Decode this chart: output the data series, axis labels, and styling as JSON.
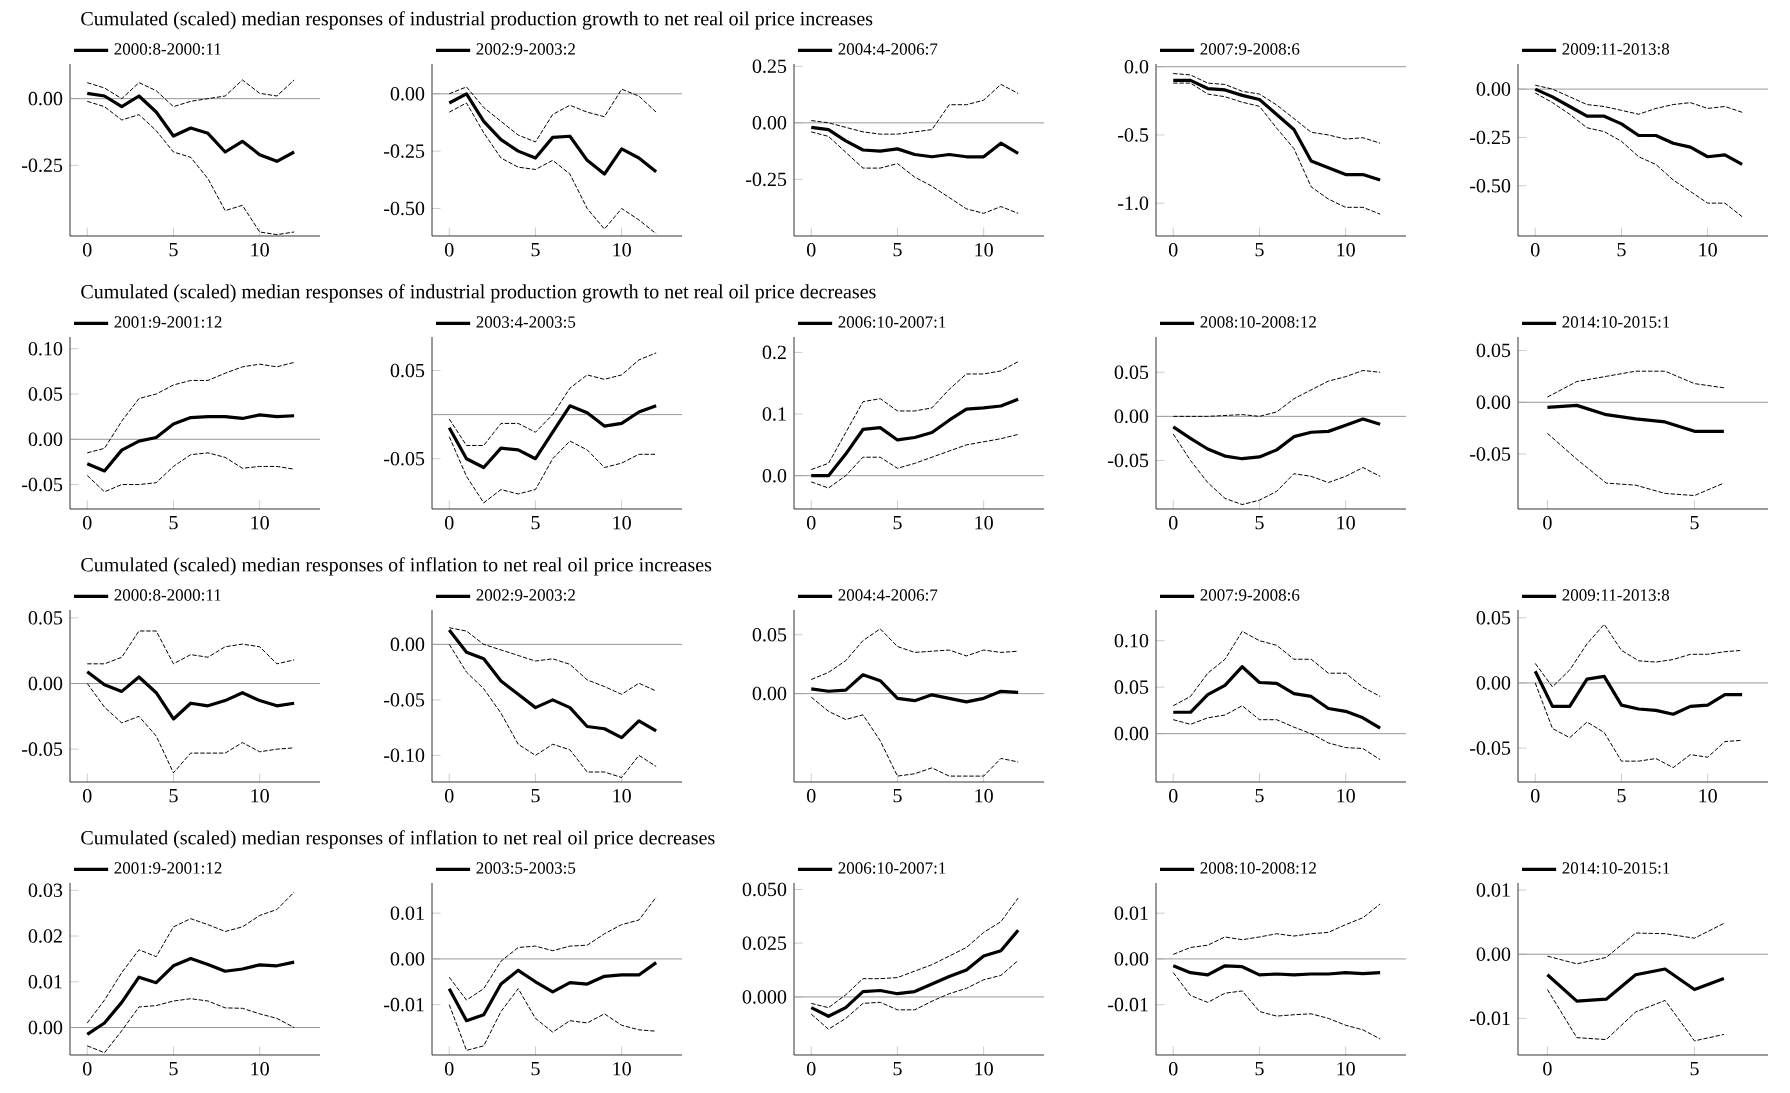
{
  "chart_data": [
    {
      "type": "line",
      "title": "Cumulated (scaled) median responses of industrial production growth to net real oil price increases",
      "x": [
        0,
        1,
        2,
        3,
        4,
        5,
        6,
        7,
        8,
        9,
        10,
        11,
        12
      ],
      "xlim": [
        -1,
        13.5
      ],
      "xticks": [
        0,
        5,
        10
      ],
      "ylim": [
        -0.515,
        0.13
      ],
      "yticks": [
        {
          "value": 0,
          "label": "0.00"
        },
        {
          "value": -0.25,
          "label": "-0.25"
        }
      ],
      "legend": "top left",
      "ref_lines": [
        {
          "axis": "y",
          "value": 0,
          "color": "#999999"
        }
      ],
      "series": [
        {
          "name": "2000:8-2000:11",
          "color": "#000000",
          "line_style": "solid",
          "values": [
            0.02,
            0.01,
            -0.03,
            0.01,
            -0.05,
            -0.14,
            -0.11,
            -0.13,
            -0.2,
            -0.16,
            -0.21,
            -0.235,
            -0.2
          ]
        },
        {
          "color": "#000000",
          "line_style": "dashed",
          "values": [
            0.06,
            0.04,
            0.0,
            0.06,
            0.03,
            -0.03,
            -0.01,
            0.0,
            0.01,
            0.07,
            0.02,
            0.01,
            0.07
          ]
        },
        {
          "color": "#000000",
          "line_style": "dashed",
          "values": [
            -0.01,
            -0.03,
            -0.08,
            -0.06,
            -0.12,
            -0.2,
            -0.22,
            -0.3,
            -0.42,
            -0.4,
            -0.5,
            -0.51,
            -0.5
          ]
        }
      ]
    },
    {
      "type": "line",
      "x": [
        0,
        1,
        2,
        3,
        4,
        5,
        6,
        7,
        8,
        9,
        10,
        11,
        12
      ],
      "xlim": [
        -1,
        13.5
      ],
      "xticks": [
        0,
        5,
        10
      ],
      "ylim": [
        -0.62,
        0.13
      ],
      "yticks": [
        {
          "value": 0,
          "label": "0.00"
        },
        {
          "value": -0.25,
          "label": "-0.25"
        },
        {
          "value": -0.5,
          "label": "-0.50"
        }
      ],
      "legend": "top left",
      "ref_lines": [
        {
          "axis": "y",
          "value": 0,
          "color": "#999999"
        }
      ],
      "series": [
        {
          "name": "2002:9-2003:2",
          "color": "#000000",
          "line_style": "solid",
          "values": [
            -0.04,
            0.0,
            -0.12,
            -0.2,
            -0.25,
            -0.28,
            -0.19,
            -0.185,
            -0.29,
            -0.35,
            -0.24,
            -0.28,
            -0.34
          ]
        },
        {
          "color": "#000000",
          "line_style": "dashed",
          "values": [
            0.0,
            0.03,
            -0.06,
            -0.12,
            -0.18,
            -0.21,
            -0.09,
            -0.05,
            -0.08,
            -0.1,
            0.02,
            -0.01,
            -0.08
          ]
        },
        {
          "color": "#000000",
          "line_style": "dashed",
          "values": [
            -0.08,
            -0.04,
            -0.17,
            -0.28,
            -0.32,
            -0.33,
            -0.29,
            -0.35,
            -0.5,
            -0.59,
            -0.5,
            -0.55,
            -0.61
          ]
        }
      ]
    },
    {
      "type": "line",
      "x": [
        0,
        1,
        2,
        3,
        4,
        5,
        6,
        7,
        8,
        9,
        10,
        11,
        12
      ],
      "xlim": [
        -1,
        13.5
      ],
      "xticks": [
        0,
        5,
        10
      ],
      "ylim": [
        -0.5,
        0.26
      ],
      "yticks": [
        {
          "value": 0.25,
          "label": "0.25"
        },
        {
          "value": 0,
          "label": "0.00"
        },
        {
          "value": -0.25,
          "label": "-0.25"
        }
      ],
      "legend": "top left",
      "ref_lines": [
        {
          "axis": "y",
          "value": 0,
          "color": "#999999"
        }
      ],
      "series": [
        {
          "name": "2004:4-2006:7",
          "color": "#000000",
          "line_style": "solid",
          "values": [
            -0.02,
            -0.03,
            -0.08,
            -0.12,
            -0.125,
            -0.115,
            -0.14,
            -0.15,
            -0.14,
            -0.15,
            -0.15,
            -0.09,
            -0.135
          ]
        },
        {
          "color": "#000000",
          "line_style": "dashed",
          "values": [
            0.01,
            0.0,
            -0.02,
            -0.04,
            -0.05,
            -0.05,
            -0.04,
            -0.03,
            0.08,
            0.08,
            0.1,
            0.17,
            0.13
          ]
        },
        {
          "color": "#000000",
          "line_style": "dashed",
          "values": [
            -0.04,
            -0.06,
            -0.13,
            -0.2,
            -0.2,
            -0.18,
            -0.24,
            -0.28,
            -0.33,
            -0.38,
            -0.4,
            -0.37,
            -0.4
          ]
        }
      ]
    },
    {
      "type": "line",
      "x": [
        0,
        1,
        2,
        3,
        4,
        5,
        6,
        7,
        8,
        9,
        10,
        11,
        12
      ],
      "xlim": [
        -1,
        13.5
      ],
      "xticks": [
        0,
        5,
        10
      ],
      "ylim": [
        -1.24,
        0.02
      ],
      "yticks": [
        {
          "value": 0,
          "label": "0.0"
        },
        {
          "value": -0.5,
          "label": "-0.5"
        },
        {
          "value": -1,
          "label": "-1.0"
        }
      ],
      "legend": "top left",
      "ref_lines": [
        {
          "axis": "y",
          "value": 0,
          "color": "#999999"
        }
      ],
      "series": [
        {
          "name": "2007:9-2008:6",
          "color": "#000000",
          "line_style": "solid",
          "values": [
            -0.1,
            -0.1,
            -0.16,
            -0.17,
            -0.21,
            -0.24,
            -0.35,
            -0.46,
            -0.69,
            -0.74,
            -0.79,
            -0.79,
            -0.83
          ]
        },
        {
          "color": "#000000",
          "line_style": "dashed",
          "values": [
            -0.05,
            -0.06,
            -0.12,
            -0.13,
            -0.18,
            -0.2,
            -0.28,
            -0.38,
            -0.48,
            -0.5,
            -0.53,
            -0.52,
            -0.56
          ]
        },
        {
          "color": "#000000",
          "line_style": "dashed",
          "values": [
            -0.12,
            -0.12,
            -0.2,
            -0.22,
            -0.26,
            -0.29,
            -0.45,
            -0.6,
            -0.88,
            -0.97,
            -1.03,
            -1.03,
            -1.08
          ]
        }
      ]
    },
    {
      "type": "line",
      "x": [
        0,
        1,
        2,
        3,
        4,
        5,
        6,
        7,
        8,
        9,
        10,
        11,
        12
      ],
      "xlim": [
        -1,
        13.5
      ],
      "xticks": [
        0,
        5,
        10
      ],
      "ylim": [
        -0.76,
        0.13
      ],
      "yticks": [
        {
          "value": 0,
          "label": "0.00"
        },
        {
          "value": -0.25,
          "label": "-0.25"
        },
        {
          "value": -0.5,
          "label": "-0.50"
        }
      ],
      "legend": "top left",
      "ref_lines": [
        {
          "axis": "y",
          "value": 0,
          "color": "#999999"
        }
      ],
      "series": [
        {
          "name": "2009:11-2013:8",
          "color": "#000000",
          "line_style": "solid",
          "values": [
            0.0,
            -0.04,
            -0.09,
            -0.14,
            -0.14,
            -0.18,
            -0.24,
            -0.24,
            -0.28,
            -0.3,
            -0.35,
            -0.34,
            -0.39
          ]
        },
        {
          "color": "#000000",
          "line_style": "dashed",
          "values": [
            0.02,
            0.0,
            -0.04,
            -0.08,
            -0.09,
            -0.11,
            -0.13,
            -0.1,
            -0.08,
            -0.07,
            -0.1,
            -0.09,
            -0.12
          ]
        },
        {
          "color": "#000000",
          "line_style": "dashed",
          "values": [
            -0.02,
            -0.07,
            -0.13,
            -0.2,
            -0.22,
            -0.27,
            -0.35,
            -0.39,
            -0.47,
            -0.53,
            -0.59,
            -0.59,
            -0.66
          ]
        }
      ]
    },
    {
      "type": "line",
      "title": "Cumulated (scaled) median responses of industrial production growth to net real oil price decreases",
      "x": [
        0,
        1,
        2,
        3,
        4,
        5,
        6,
        7,
        8,
        9,
        10,
        11,
        12
      ],
      "xlim": [
        -1,
        13.5
      ],
      "xticks": [
        0,
        5,
        10
      ],
      "ylim": [
        -0.077,
        0.113
      ],
      "yticks": [
        {
          "value": 0.1,
          "label": "0.10"
        },
        {
          "value": 0.05,
          "label": "0.05"
        },
        {
          "value": 0,
          "label": "0.00"
        },
        {
          "value": -0.05,
          "label": "-0.05"
        }
      ],
      "legend": "top left",
      "ref_lines": [
        {
          "axis": "y",
          "value": 0,
          "color": "#999999"
        }
      ],
      "series": [
        {
          "name": "2001:9-2001:12",
          "color": "#000000",
          "line_style": "solid",
          "values": [
            -0.027,
            -0.035,
            -0.012,
            -0.002,
            0.002,
            0.017,
            0.024,
            0.025,
            0.025,
            0.023,
            0.027,
            0.025,
            0.026
          ]
        },
        {
          "color": "#000000",
          "line_style": "dashed",
          "values": [
            -0.015,
            -0.01,
            0.02,
            0.045,
            0.05,
            0.06,
            0.065,
            0.065,
            0.073,
            0.08,
            0.083,
            0.08,
            0.085
          ]
        },
        {
          "color": "#000000",
          "line_style": "dashed",
          "values": [
            -0.04,
            -0.058,
            -0.05,
            -0.05,
            -0.048,
            -0.03,
            -0.017,
            -0.015,
            -0.02,
            -0.032,
            -0.03,
            -0.03,
            -0.033
          ]
        }
      ]
    },
    {
      "type": "line",
      "x": [
        0,
        1,
        2,
        3,
        4,
        5,
        6,
        7,
        8,
        9,
        10,
        11,
        12
      ],
      "xlim": [
        -1,
        13.5
      ],
      "xticks": [
        0,
        5,
        10
      ],
      "ylim": [
        -0.107,
        0.088
      ],
      "yticks": [
        {
          "value": 0.05,
          "label": "0.05"
        },
        {
          "value": 0,
          "label": null
        },
        {
          "value": -0.05,
          "label": "-0.05"
        }
      ],
      "legend": "top left",
      "ref_lines": [
        {
          "axis": "y",
          "value": 0,
          "color": "#999999"
        }
      ],
      "series": [
        {
          "name": "2003:4-2003:5",
          "color": "#000000",
          "line_style": "solid",
          "values": [
            -0.015,
            -0.05,
            -0.06,
            -0.038,
            -0.04,
            -0.05,
            -0.02,
            0.01,
            0.002,
            -0.013,
            -0.01,
            0.003,
            0.01
          ]
        },
        {
          "color": "#000000",
          "line_style": "dashed",
          "values": [
            -0.005,
            -0.035,
            -0.035,
            -0.01,
            -0.01,
            -0.02,
            0.0,
            0.03,
            0.045,
            0.04,
            0.045,
            0.062,
            0.07
          ]
        },
        {
          "color": "#000000",
          "line_style": "dashed",
          "values": [
            -0.025,
            -0.07,
            -0.1,
            -0.085,
            -0.09,
            -0.085,
            -0.05,
            -0.03,
            -0.04,
            -0.06,
            -0.055,
            -0.045,
            -0.045
          ]
        }
      ]
    },
    {
      "type": "line",
      "x": [
        0,
        1,
        2,
        3,
        4,
        5,
        6,
        7,
        8,
        9,
        10,
        11,
        12
      ],
      "xlim": [
        -1,
        13.5
      ],
      "xticks": [
        0,
        5,
        10
      ],
      "ylim": [
        -0.054,
        0.225
      ],
      "yticks": [
        {
          "value": 0.2,
          "label": "0.2"
        },
        {
          "value": 0.1,
          "label": "0.1"
        },
        {
          "value": 0,
          "label": "0.0"
        }
      ],
      "legend": "top left",
      "ref_lines": [
        {
          "axis": "y",
          "value": 0,
          "color": "#999999"
        }
      ],
      "series": [
        {
          "name": "2006:10-2007:1",
          "color": "#000000",
          "line_style": "solid",
          "values": [
            0.0,
            0.0,
            0.035,
            0.075,
            0.078,
            0.058,
            0.062,
            0.07,
            0.09,
            0.108,
            0.11,
            0.113,
            0.124
          ]
        },
        {
          "color": "#000000",
          "line_style": "dashed",
          "values": [
            0.01,
            0.02,
            0.07,
            0.12,
            0.125,
            0.105,
            0.105,
            0.11,
            0.14,
            0.165,
            0.165,
            0.17,
            0.185
          ]
        },
        {
          "color": "#000000",
          "line_style": "dashed",
          "values": [
            -0.01,
            -0.02,
            0.0,
            0.03,
            0.03,
            0.012,
            0.02,
            0.03,
            0.04,
            0.05,
            0.055,
            0.06,
            0.067
          ]
        }
      ]
    },
    {
      "type": "line",
      "x": [
        0,
        1,
        2,
        3,
        4,
        5,
        6,
        7,
        8,
        9,
        10,
        11,
        12
      ],
      "xlim": [
        -1,
        13.5
      ],
      "xticks": [
        0,
        5,
        10
      ],
      "ylim": [
        -0.105,
        0.09
      ],
      "yticks": [
        {
          "value": 0.05,
          "label": "0.05"
        },
        {
          "value": 0,
          "label": "0.00"
        },
        {
          "value": -0.05,
          "label": "-0.05"
        }
      ],
      "legend": "top left",
      "ref_lines": [
        {
          "axis": "y",
          "value": 0,
          "color": "#999999"
        }
      ],
      "series": [
        {
          "name": "2008:10-2008:12",
          "color": "#000000",
          "line_style": "solid",
          "values": [
            -0.012,
            -0.025,
            -0.037,
            -0.045,
            -0.048,
            -0.046,
            -0.038,
            -0.023,
            -0.018,
            -0.017,
            -0.01,
            -0.003,
            -0.009
          ]
        },
        {
          "color": "#000000",
          "line_style": "dashed",
          "values": [
            0.0,
            0.0,
            0.0,
            0.001,
            0.002,
            0.0,
            0.005,
            0.02,
            0.03,
            0.04,
            0.045,
            0.052,
            0.05
          ]
        },
        {
          "color": "#000000",
          "line_style": "dashed",
          "values": [
            -0.02,
            -0.05,
            -0.075,
            -0.093,
            -0.1,
            -0.095,
            -0.085,
            -0.065,
            -0.068,
            -0.075,
            -0.068,
            -0.058,
            -0.068
          ]
        }
      ]
    },
    {
      "type": "line",
      "x": [
        0,
        1,
        2,
        3,
        4,
        5,
        6
      ],
      "xlim": [
        -1,
        7.5
      ],
      "xticks": [
        0,
        5
      ],
      "ylim": [
        -0.103,
        0.063
      ],
      "yticks": [
        {
          "value": 0.05,
          "label": "0.05"
        },
        {
          "value": 0,
          "label": "0.00"
        },
        {
          "value": -0.05,
          "label": "-0.05"
        }
      ],
      "legend": "top left",
      "ref_lines": [
        {
          "axis": "y",
          "value": 0,
          "color": "#999999"
        }
      ],
      "series": [
        {
          "name": "2014:10-2015:1",
          "color": "#000000",
          "line_style": "solid",
          "values": [
            -0.005,
            -0.003,
            -0.012,
            -0.016,
            -0.019,
            -0.028,
            -0.028
          ]
        },
        {
          "color": "#000000",
          "line_style": "dashed",
          "values": [
            0.005,
            0.02,
            0.025,
            0.03,
            0.03,
            0.018,
            0.014
          ]
        },
        {
          "color": "#000000",
          "line_style": "dashed",
          "values": [
            -0.03,
            -0.055,
            -0.078,
            -0.08,
            -0.088,
            -0.09,
            -0.078
          ]
        }
      ]
    },
    {
      "type": "line",
      "title": "Cumulated (scaled) median responses of inflation to net real oil price increases",
      "x": [
        0,
        1,
        2,
        3,
        4,
        5,
        6,
        7,
        8,
        9,
        10,
        11,
        12
      ],
      "xlim": [
        -1,
        13.5
      ],
      "xticks": [
        0,
        5,
        10
      ],
      "ylim": [
        -0.075,
        0.056
      ],
      "yticks": [
        {
          "value": 0.05,
          "label": "0.05"
        },
        {
          "value": 0,
          "label": "0.00"
        },
        {
          "value": -0.05,
          "label": "-0.05"
        }
      ],
      "legend": "top left",
      "ref_lines": [
        {
          "axis": "y",
          "value": 0,
          "color": "#999999"
        }
      ],
      "series": [
        {
          "name": "2000:8-2000:11",
          "color": "#000000",
          "line_style": "solid",
          "values": [
            0.009,
            -0.001,
            -0.006,
            0.005,
            -0.007,
            -0.027,
            -0.015,
            -0.017,
            -0.013,
            -0.007,
            -0.013,
            -0.017,
            -0.015
          ]
        },
        {
          "color": "#000000",
          "line_style": "dashed",
          "values": [
            0.015,
            0.015,
            0.02,
            0.04,
            0.04,
            0.015,
            0.022,
            0.02,
            0.028,
            0.03,
            0.028,
            0.015,
            0.018
          ]
        },
        {
          "color": "#000000",
          "line_style": "dashed",
          "values": [
            0.0,
            -0.018,
            -0.03,
            -0.025,
            -0.04,
            -0.068,
            -0.053,
            -0.053,
            -0.053,
            -0.045,
            -0.052,
            -0.05,
            -0.049
          ]
        }
      ]
    },
    {
      "type": "line",
      "x": [
        0,
        1,
        2,
        3,
        4,
        5,
        6,
        7,
        8,
        9,
        10,
        11,
        12
      ],
      "xlim": [
        -1,
        13.5
      ],
      "xticks": [
        0,
        5,
        10
      ],
      "ylim": [
        -0.124,
        0.031
      ],
      "yticks": [
        {
          "value": 0,
          "label": "0.00"
        },
        {
          "value": -0.05,
          "label": "-0.05"
        },
        {
          "value": -0.1,
          "label": "-0.10"
        }
      ],
      "legend": "top left",
      "ref_lines": [
        {
          "axis": "y",
          "value": 0,
          "color": "#999999"
        }
      ],
      "series": [
        {
          "name": "2002:9-2003:2",
          "color": "#000000",
          "line_style": "solid",
          "values": [
            0.013,
            -0.007,
            -0.013,
            -0.033,
            -0.045,
            -0.057,
            -0.05,
            -0.057,
            -0.074,
            -0.076,
            -0.084,
            -0.069,
            -0.078
          ]
        },
        {
          "color": "#000000",
          "line_style": "dashed",
          "values": [
            0.015,
            0.012,
            0.0,
            -0.005,
            -0.01,
            -0.015,
            -0.013,
            -0.018,
            -0.032,
            -0.038,
            -0.045,
            -0.035,
            -0.042
          ]
        },
        {
          "color": "#000000",
          "line_style": "dashed",
          "values": [
            0.0,
            -0.025,
            -0.04,
            -0.062,
            -0.09,
            -0.1,
            -0.09,
            -0.095,
            -0.115,
            -0.115,
            -0.12,
            -0.1,
            -0.11
          ]
        }
      ]
    },
    {
      "type": "line",
      "x": [
        0,
        1,
        2,
        3,
        4,
        5,
        6,
        7,
        8,
        9,
        10,
        11,
        12
      ],
      "xlim": [
        -1,
        13.5
      ],
      "xticks": [
        0,
        5,
        10
      ],
      "ylim": [
        -0.075,
        0.071
      ],
      "yticks": [
        {
          "value": 0.05,
          "label": "0.05"
        },
        {
          "value": 0,
          "label": "0.00"
        }
      ],
      "legend": "top left",
      "ref_lines": [
        {
          "axis": "y",
          "value": 0,
          "color": "#999999"
        }
      ],
      "series": [
        {
          "name": "2004:4-2006:7",
          "color": "#000000",
          "line_style": "solid",
          "values": [
            0.004,
            0.002,
            0.003,
            0.016,
            0.011,
            -0.004,
            -0.006,
            -0.001,
            -0.004,
            -0.007,
            -0.004,
            0.002,
            0.001
          ]
        },
        {
          "color": "#000000",
          "line_style": "dashed",
          "values": [
            0.012,
            0.018,
            0.028,
            0.045,
            0.055,
            0.04,
            0.035,
            0.036,
            0.037,
            0.032,
            0.037,
            0.035,
            0.036
          ]
        },
        {
          "color": "#000000",
          "line_style": "dashed",
          "values": [
            -0.003,
            -0.015,
            -0.022,
            -0.018,
            -0.04,
            -0.07,
            -0.068,
            -0.063,
            -0.07,
            -0.07,
            -0.07,
            -0.055,
            -0.058
          ]
        }
      ]
    },
    {
      "type": "line",
      "x": [
        0,
        1,
        2,
        3,
        4,
        5,
        6,
        7,
        8,
        9,
        10,
        11,
        12
      ],
      "xlim": [
        -1,
        13.5
      ],
      "xticks": [
        0,
        5,
        10
      ],
      "ylim": [
        -0.052,
        0.133
      ],
      "yticks": [
        {
          "value": 0.1,
          "label": "0.10"
        },
        {
          "value": 0.05,
          "label": "0.05"
        },
        {
          "value": 0,
          "label": "0.00"
        }
      ],
      "legend": "top left",
      "ref_lines": [
        {
          "axis": "y",
          "value": 0,
          "color": "#999999"
        }
      ],
      "series": [
        {
          "name": "2007:9-2008:6",
          "color": "#000000",
          "line_style": "solid",
          "values": [
            0.023,
            0.023,
            0.042,
            0.052,
            0.072,
            0.055,
            0.054,
            0.043,
            0.04,
            0.027,
            0.024,
            0.017,
            0.006
          ]
        },
        {
          "color": "#000000",
          "line_style": "dashed",
          "values": [
            0.03,
            0.04,
            0.065,
            0.08,
            0.11,
            0.1,
            0.095,
            0.08,
            0.08,
            0.065,
            0.065,
            0.05,
            0.04
          ]
        },
        {
          "color": "#000000",
          "line_style": "dashed",
          "values": [
            0.015,
            0.01,
            0.017,
            0.02,
            0.03,
            0.015,
            0.015,
            0.007,
            0.0,
            -0.01,
            -0.015,
            -0.016,
            -0.028
          ]
        }
      ]
    },
    {
      "type": "line",
      "x": [
        0,
        1,
        2,
        3,
        4,
        5,
        6,
        7,
        8,
        9,
        10,
        11,
        12
      ],
      "xlim": [
        -1,
        13.5
      ],
      "xticks": [
        0,
        5,
        10
      ],
      "ylim": [
        -0.076,
        0.056
      ],
      "yticks": [
        {
          "value": 0.05,
          "label": "0.05"
        },
        {
          "value": 0,
          "label": "0.00"
        },
        {
          "value": -0.05,
          "label": "-0.05"
        }
      ],
      "legend": "top left",
      "ref_lines": [
        {
          "axis": "y",
          "value": 0,
          "color": "#999999"
        }
      ],
      "series": [
        {
          "name": "2009:11-2013:8",
          "color": "#000000",
          "line_style": "solid",
          "values": [
            0.009,
            -0.018,
            -0.018,
            0.003,
            0.005,
            -0.017,
            -0.02,
            -0.021,
            -0.024,
            -0.018,
            -0.017,
            -0.009,
            -0.009
          ]
        },
        {
          "color": "#000000",
          "line_style": "dashed",
          "values": [
            0.015,
            -0.003,
            0.01,
            0.03,
            0.045,
            0.025,
            0.017,
            0.016,
            0.018,
            0.022,
            0.022,
            0.024,
            0.025
          ]
        },
        {
          "color": "#000000",
          "line_style": "dashed",
          "values": [
            0.0,
            -0.035,
            -0.042,
            -0.03,
            -0.038,
            -0.06,
            -0.06,
            -0.058,
            -0.065,
            -0.055,
            -0.057,
            -0.045,
            -0.044
          ]
        }
      ]
    },
    {
      "type": "line",
      "title": "Cumulated (scaled) median responses of inflation to net real oil price decreases",
      "x": [
        0,
        1,
        2,
        3,
        4,
        5,
        6,
        7,
        8,
        9,
        10,
        11,
        12
      ],
      "xlim": [
        -1,
        13.5
      ],
      "xticks": [
        0,
        5,
        10
      ],
      "ylim": [
        -0.006,
        0.0316
      ],
      "yticks": [
        {
          "value": 0.03,
          "label": "0.03"
        },
        {
          "value": 0.02,
          "label": "0.02"
        },
        {
          "value": 0.01,
          "label": "0.01"
        },
        {
          "value": 0,
          "label": "0.00"
        }
      ],
      "legend": "top left",
      "ref_lines": [
        {
          "axis": "y",
          "value": 0,
          "color": "#999999"
        }
      ],
      "series": [
        {
          "name": "2001:9-2001:12",
          "color": "#000000",
          "line_style": "solid",
          "values": [
            -0.0015,
            0.001,
            0.0055,
            0.011,
            0.0098,
            0.0135,
            0.0151,
            0.0138,
            0.0123,
            0.0128,
            0.0137,
            0.0135,
            0.0143
          ]
        },
        {
          "color": "#000000",
          "line_style": "dashed",
          "values": [
            0.001,
            0.006,
            0.012,
            0.017,
            0.0155,
            0.022,
            0.0238,
            0.0225,
            0.021,
            0.022,
            0.0245,
            0.0258,
            0.0296
          ]
        },
        {
          "color": "#000000",
          "line_style": "dashed",
          "values": [
            -0.004,
            -0.0055,
            -0.0007,
            0.0045,
            0.0048,
            0.0058,
            0.0063,
            0.0058,
            0.0043,
            0.0042,
            0.003,
            0.002,
            0.0
          ]
        }
      ]
    },
    {
      "type": "line",
      "x": [
        0,
        1,
        2,
        3,
        4,
        5,
        6,
        7,
        8,
        9,
        10,
        11,
        12
      ],
      "xlim": [
        -1,
        13.5
      ],
      "xticks": [
        0,
        5,
        10
      ],
      "ylim": [
        -0.021,
        0.0166
      ],
      "yticks": [
        {
          "value": 0.01,
          "label": "0.01"
        },
        {
          "value": 0,
          "label": "0.00"
        },
        {
          "value": -0.01,
          "label": "-0.01"
        }
      ],
      "legend": "top left",
      "ref_lines": [
        {
          "axis": "y",
          "value": 0,
          "color": "#999999"
        }
      ],
      "series": [
        {
          "name": "2003:5-2003:5",
          "color": "#000000",
          "line_style": "solid",
          "values": [
            -0.0065,
            -0.0135,
            -0.0122,
            -0.0055,
            -0.0025,
            -0.005,
            -0.0072,
            -0.0052,
            -0.0055,
            -0.0038,
            -0.0035,
            -0.0035,
            -0.0008
          ]
        },
        {
          "color": "#000000",
          "line_style": "dashed",
          "values": [
            -0.004,
            -0.009,
            -0.0065,
            -0.0005,
            0.0025,
            0.0028,
            0.0018,
            0.0028,
            0.003,
            0.0055,
            0.0075,
            0.0085,
            0.0135
          ]
        },
        {
          "color": "#000000",
          "line_style": "dashed",
          "values": [
            -0.01,
            -0.02,
            -0.019,
            -0.0115,
            -0.0065,
            -0.013,
            -0.016,
            -0.0135,
            -0.014,
            -0.012,
            -0.0145,
            -0.0155,
            -0.0158
          ]
        }
      ]
    },
    {
      "type": "line",
      "x": [
        0,
        1,
        2,
        3,
        4,
        5,
        6,
        7,
        8,
        9,
        10,
        11,
        12
      ],
      "xlim": [
        -1,
        13.5
      ],
      "xticks": [
        0,
        5,
        10
      ],
      "ylim": [
        -0.027,
        0.053
      ],
      "yticks": [
        {
          "value": 0.05,
          "label": "0.050"
        },
        {
          "value": 0.025,
          "label": "0.025"
        },
        {
          "value": 0,
          "label": "0.000"
        }
      ],
      "legend": "top left",
      "ref_lines": [
        {
          "axis": "y",
          "value": 0,
          "color": "#999999"
        }
      ],
      "series": [
        {
          "name": "2006:10-2007:1",
          "color": "#000000",
          "line_style": "solid",
          "values": [
            -0.005,
            -0.009,
            -0.005,
            0.0025,
            0.003,
            0.0015,
            0.0025,
            0.006,
            0.0095,
            0.0125,
            0.019,
            0.0215,
            0.031
          ]
        },
        {
          "color": "#000000",
          "line_style": "dashed",
          "values": [
            -0.003,
            -0.005,
            0.001,
            0.0085,
            0.0085,
            0.009,
            0.012,
            0.015,
            0.019,
            0.023,
            0.03,
            0.035,
            0.046
          ]
        },
        {
          "color": "#000000",
          "line_style": "dashed",
          "values": [
            -0.008,
            -0.015,
            -0.01,
            -0.003,
            -0.0025,
            -0.006,
            -0.006,
            -0.002,
            0.0015,
            0.004,
            0.008,
            0.01,
            0.017
          ]
        }
      ]
    },
    {
      "type": "line",
      "x": [
        0,
        1,
        2,
        3,
        4,
        5,
        6,
        7,
        8,
        9,
        10,
        11,
        12
      ],
      "xlim": [
        -1,
        13.5
      ],
      "xticks": [
        0,
        5,
        10
      ],
      "ylim": [
        -0.021,
        0.0166
      ],
      "yticks": [
        {
          "value": 0.01,
          "label": "0.01"
        },
        {
          "value": 0,
          "label": "0.00"
        },
        {
          "value": -0.01,
          "label": "-0.01"
        }
      ],
      "legend": "top left",
      "ref_lines": [
        {
          "axis": "y",
          "value": 0,
          "color": "#999999"
        }
      ],
      "series": [
        {
          "name": "2008:10-2008:12",
          "color": "#000000",
          "line_style": "solid",
          "values": [
            -0.0015,
            -0.003,
            -0.0035,
            -0.0015,
            -0.0017,
            -0.0035,
            -0.0033,
            -0.0035,
            -0.0033,
            -0.0033,
            -0.003,
            -0.0032,
            -0.003
          ]
        },
        {
          "color": "#000000",
          "line_style": "dashed",
          "values": [
            0.001,
            0.0025,
            0.003,
            0.0048,
            0.0042,
            0.0048,
            0.0055,
            0.005,
            0.0055,
            0.0058,
            0.0075,
            0.009,
            0.012
          ]
        },
        {
          "color": "#000000",
          "line_style": "dashed",
          "values": [
            -0.003,
            -0.008,
            -0.0095,
            -0.0075,
            -0.007,
            -0.0115,
            -0.0125,
            -0.0122,
            -0.012,
            -0.013,
            -0.0145,
            -0.0155,
            -0.0175
          ]
        }
      ]
    },
    {
      "type": "line",
      "x": [
        0,
        1,
        2,
        3,
        4,
        5,
        6
      ],
      "xlim": [
        -1,
        7.5
      ],
      "xticks": [
        0,
        5
      ],
      "ylim": [
        -0.0157,
        0.0111
      ],
      "yticks": [
        {
          "value": 0.01,
          "label": "0.01"
        },
        {
          "value": 0,
          "label": "0.00"
        },
        {
          "value": -0.01,
          "label": "-0.01"
        }
      ],
      "legend": "top left",
      "ref_lines": [
        {
          "axis": "y",
          "value": 0,
          "color": "#999999"
        }
      ],
      "series": [
        {
          "name": "2014:10-2015:1",
          "color": "#000000",
          "line_style": "solid",
          "values": [
            -0.0032,
            -0.0073,
            -0.007,
            -0.0032,
            -0.0023,
            -0.0055,
            -0.0038
          ]
        },
        {
          "color": "#000000",
          "line_style": "dashed",
          "values": [
            -0.0003,
            -0.0015,
            -0.0005,
            0.0033,
            0.0032,
            0.0025,
            0.0048
          ]
        },
        {
          "color": "#000000",
          "line_style": "dashed",
          "values": [
            -0.0055,
            -0.013,
            -0.0133,
            -0.009,
            -0.0072,
            -0.0135,
            -0.0125
          ]
        }
      ]
    }
  ]
}
